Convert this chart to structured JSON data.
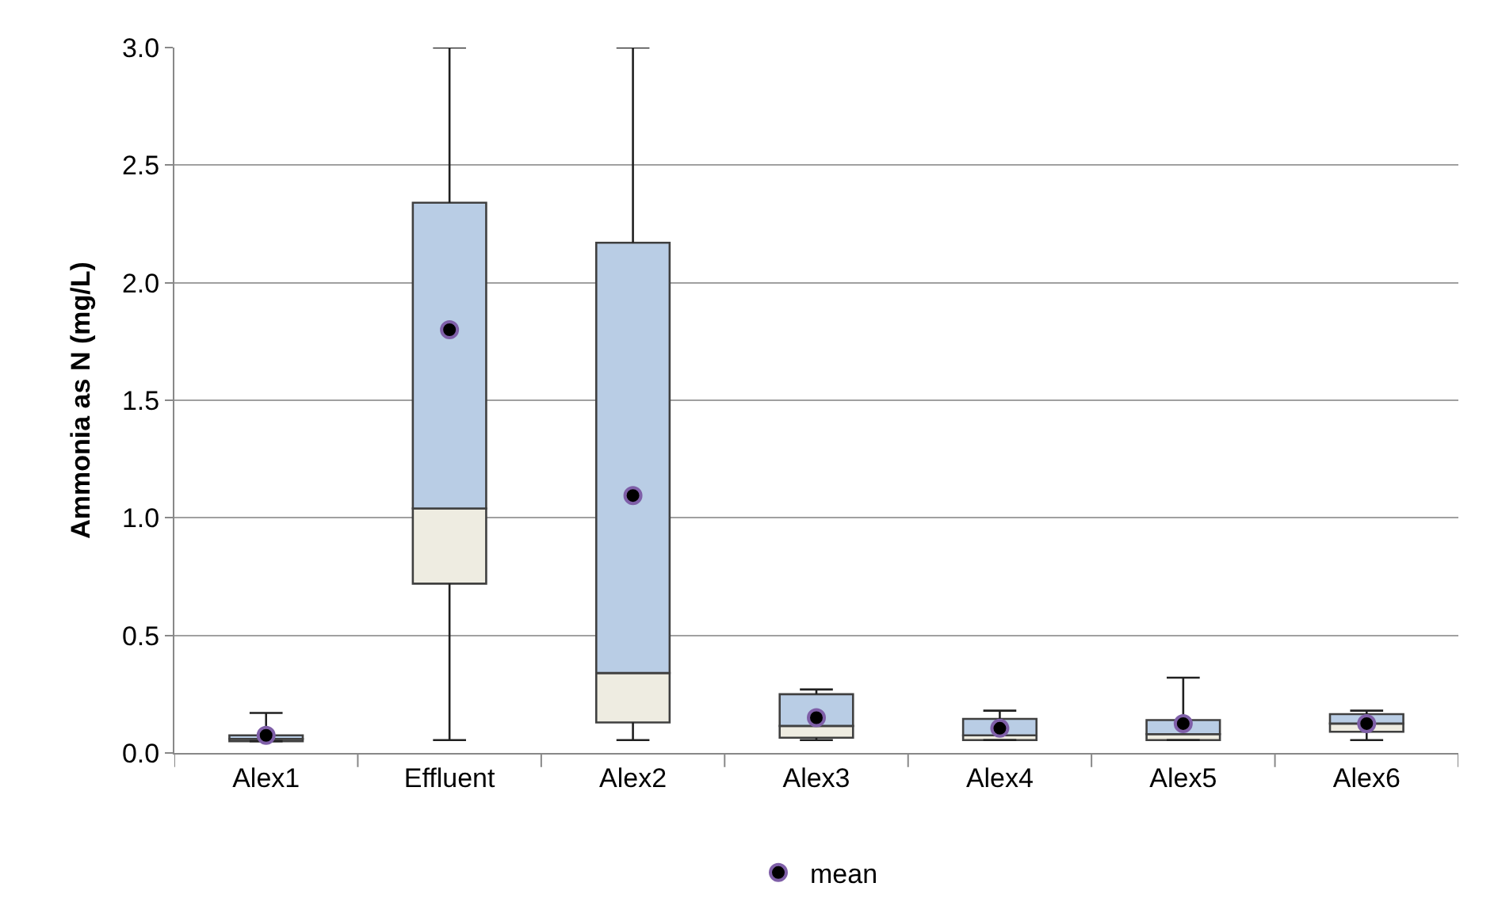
{
  "chart_data": {
    "type": "box",
    "ylabel": "Ammonia as N (mg/L)",
    "categories": [
      "Alex1",
      "Effluent",
      "Alex2",
      "Alex3",
      "Alex4",
      "Alex5",
      "Alex6"
    ],
    "ylim": [
      0,
      3.0
    ],
    "yticks": [
      {
        "value": 0,
        "label": "0.0"
      },
      {
        "value": 0.5,
        "label": "0.5"
      },
      {
        "value": 1.0,
        "label": "1.0"
      },
      {
        "value": 1.5,
        "label": "1.5"
      },
      {
        "value": 2.0,
        "label": "2.0"
      },
      {
        "value": 2.5,
        "label": "2.5"
      },
      {
        "value": 3.0,
        "label": "3.0"
      }
    ],
    "grid": "y",
    "legend": "bottom",
    "series": [
      {
        "color": "#b9cde5",
        "colors": [
          "#eeece1",
          "#eeece1",
          "#eeece1",
          "#eeece1",
          "#eeece1",
          "#eeece1",
          "#eeece1"
        ],
        "boxes": [
          {
            "low": 0.05,
            "q1": 0.05,
            "median": 0.06,
            "q3": 0.075,
            "high": 0.17
          },
          {
            "low": 0.055,
            "q1": 0.72,
            "median": 1.04,
            "q3": 2.34,
            "high": 3.0
          },
          {
            "low": 0.055,
            "q1": 0.13,
            "median": 0.34,
            "q3": 2.17,
            "high": 3.0
          },
          {
            "low": 0.055,
            "q1": 0.065,
            "median": 0.115,
            "q3": 0.25,
            "high": 0.27
          },
          {
            "low": 0.055,
            "q1": 0.055,
            "median": 0.075,
            "q3": 0.145,
            "high": 0.18
          },
          {
            "low": 0.055,
            "q1": 0.055,
            "median": 0.08,
            "q3": 0.14,
            "high": 0.32
          },
          {
            "low": 0.055,
            "q1": 0.09,
            "median": 0.125,
            "q3": 0.165,
            "high": 0.18
          }
        ]
      },
      {
        "type": "scatter",
        "name": "mean",
        "color": "#000000",
        "marker": "circle",
        "x": [
          "Alex1",
          "Effluent",
          "Alex2",
          "Alex3",
          "Alex4",
          "Alex5",
          "Alex6"
        ],
        "values": [
          0.075,
          1.8,
          1.095,
          0.15,
          0.105,
          0.125,
          0.125
        ]
      }
    ]
  }
}
